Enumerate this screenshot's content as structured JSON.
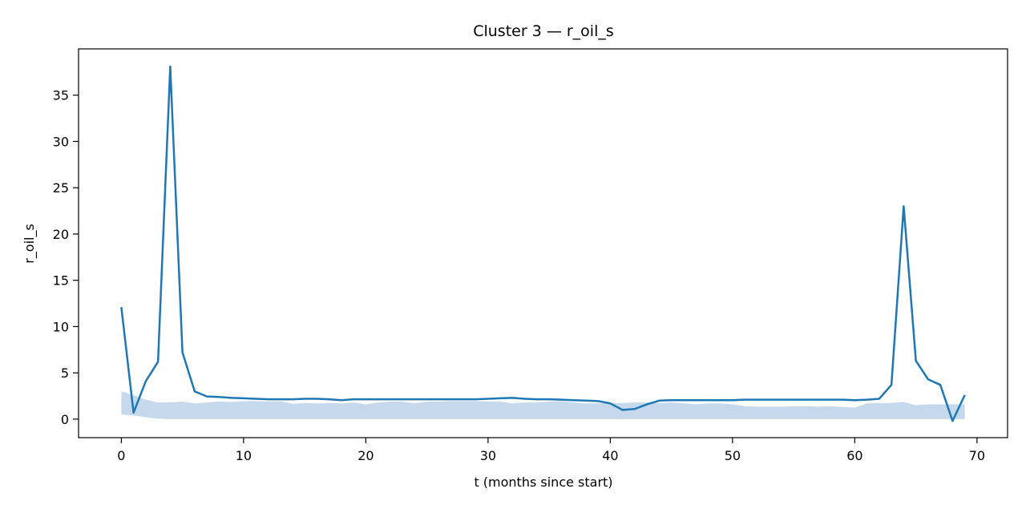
{
  "chart_data": {
    "type": "line",
    "title": "Cluster 3 — r_oil_s",
    "xlabel": "t (months since start)",
    "ylabel": "r_oil_s",
    "xlim": [
      -3.5,
      72.5
    ],
    "ylim": [
      -2.0,
      40.0
    ],
    "xticks": [
      0,
      10,
      20,
      30,
      40,
      50,
      60,
      70
    ],
    "yticks": [
      0,
      5,
      10,
      15,
      20,
      25,
      30,
      35
    ],
    "grid": false,
    "colors": {
      "line": "#1f77b4",
      "band": "#c6d9ec",
      "axes": "#000000"
    },
    "series": [
      {
        "x": [
          0,
          1,
          2,
          3,
          4,
          5,
          6,
          7,
          8,
          9,
          10,
          11,
          12,
          13,
          14,
          15,
          16,
          17,
          18,
          19,
          20,
          21,
          22,
          23,
          24,
          25,
          26,
          27,
          28,
          29,
          30,
          31,
          32,
          33,
          34,
          35,
          36,
          37,
          38,
          39,
          40,
          41,
          42,
          43,
          44,
          45,
          46,
          47,
          48,
          49,
          50,
          51,
          52,
          53,
          54,
          55,
          56,
          57,
          58,
          59,
          60,
          61,
          62,
          63,
          64,
          65,
          66,
          67,
          68,
          69
        ],
        "y": [
          12.1,
          0.7,
          4.1,
          6.2,
          38.1,
          7.2,
          3.0,
          2.45,
          2.4,
          2.3,
          2.25,
          2.2,
          2.15,
          2.15,
          2.15,
          2.2,
          2.2,
          2.15,
          2.05,
          2.15,
          2.15,
          2.15,
          2.15,
          2.15,
          2.15,
          2.15,
          2.15,
          2.15,
          2.15,
          2.15,
          2.2,
          2.25,
          2.3,
          2.2,
          2.15,
          2.15,
          2.1,
          2.05,
          2.0,
          1.95,
          1.7,
          1.0,
          1.1,
          1.6,
          2.0,
          2.05,
          2.05,
          2.05,
          2.05,
          2.05,
          2.05,
          2.1,
          2.1,
          2.1,
          2.1,
          2.1,
          2.1,
          2.1,
          2.1,
          2.1,
          2.05,
          2.1,
          2.2,
          3.7,
          23.0,
          6.3,
          4.3,
          3.7,
          -0.2,
          2.6
        ],
        "band_lower": [
          0.5,
          0.4,
          0.2,
          0.05,
          0.0,
          0.0,
          0.0,
          0.0,
          0.0,
          0.0,
          0.0,
          0.0,
          0.0,
          0.0,
          0.0,
          0.0,
          0.0,
          0.0,
          0.0,
          0.0,
          0.0,
          0.0,
          0.0,
          0.0,
          0.0,
          0.0,
          0.0,
          0.0,
          0.0,
          0.0,
          0.0,
          0.0,
          0.0,
          0.0,
          0.0,
          0.0,
          0.0,
          0.0,
          0.0,
          0.0,
          0.0,
          0.0,
          0.0,
          0.0,
          0.0,
          0.0,
          0.0,
          0.0,
          0.0,
          0.0,
          0.0,
          0.0,
          0.0,
          0.0,
          0.0,
          0.0,
          0.0,
          0.0,
          0.0,
          0.0,
          0.0,
          0.0,
          0.0,
          0.0,
          0.0,
          0.0,
          0.0,
          0.0,
          0.0,
          0.0
        ],
        "band_upper": [
          3.0,
          2.6,
          2.1,
          1.8,
          1.8,
          1.9,
          1.7,
          1.8,
          1.9,
          1.85,
          1.95,
          1.95,
          1.9,
          1.95,
          1.65,
          1.75,
          1.7,
          1.75,
          1.7,
          1.8,
          1.6,
          1.8,
          1.9,
          1.9,
          1.7,
          1.9,
          1.9,
          1.95,
          1.95,
          1.95,
          1.9,
          1.9,
          1.7,
          1.8,
          1.8,
          1.9,
          1.95,
          1.8,
          1.7,
          1.7,
          1.75,
          1.75,
          1.8,
          1.8,
          1.75,
          1.8,
          1.7,
          1.6,
          1.7,
          1.7,
          1.6,
          1.4,
          1.35,
          1.35,
          1.35,
          1.4,
          1.4,
          1.35,
          1.4,
          1.3,
          1.25,
          1.7,
          1.75,
          1.75,
          1.85,
          1.5,
          1.6,
          1.6,
          1.6,
          1.6
        ]
      }
    ]
  }
}
